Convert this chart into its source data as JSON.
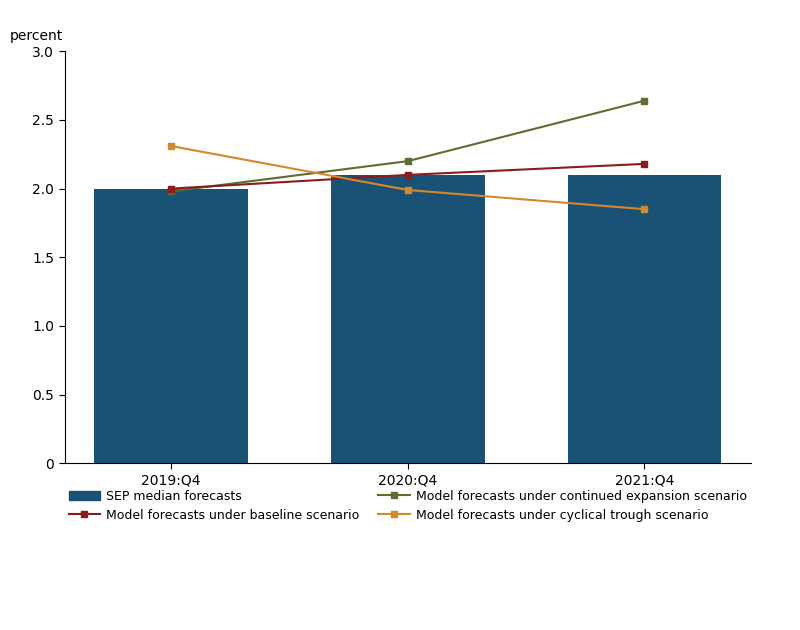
{
  "ylabel": "percent",
  "x_labels": [
    "2019:Q4",
    "2020:Q4",
    "2021:Q4"
  ],
  "x_positions": [
    0,
    1,
    2
  ],
  "bar_values": [
    2.0,
    2.1,
    2.1
  ],
  "bar_color": "#1A5276",
  "baseline_values": [
    2.0,
    2.1,
    2.18
  ],
  "baseline_color": "#8B1C1C",
  "expansion_values": [
    1.98,
    2.2,
    2.64
  ],
  "expansion_color": "#5D6E2E",
  "trough_values": [
    2.31,
    1.99,
    1.85
  ],
  "trough_color": "#D4882A",
  "ylim": [
    0,
    3.0
  ],
  "yticks": [
    0,
    0.5,
    1.0,
    1.5,
    2.0,
    2.5,
    3.0
  ],
  "bar_width": 0.65,
  "xlim": [
    -0.45,
    2.45
  ],
  "legend_labels": {
    "bar": "SEP median forecasts",
    "baseline": "Model forecasts under baseline scenario",
    "expansion": "Model forecasts under continued expansion scenario",
    "trough": "Model forecasts under cyclical trough scenario"
  }
}
